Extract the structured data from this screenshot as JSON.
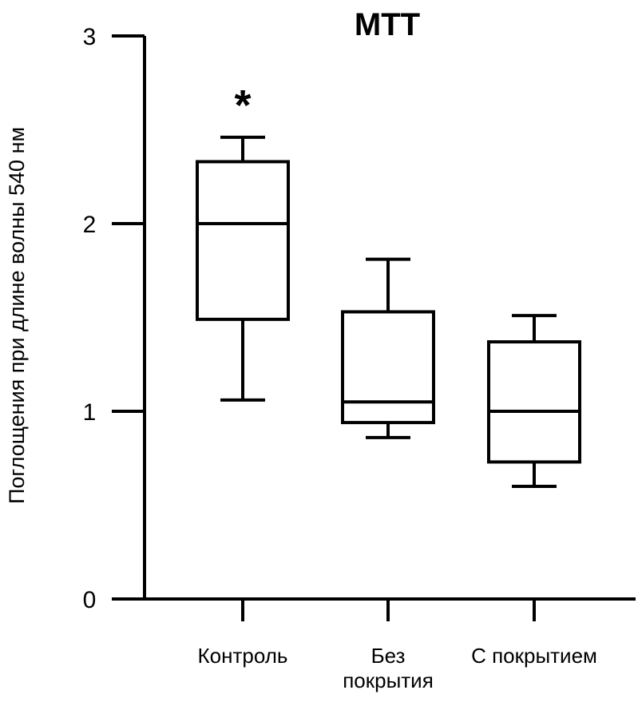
{
  "chart_data": {
    "type": "box",
    "title": "MTT",
    "xlabel": "",
    "ylabel": "Поглощения при длине волны 540 нм",
    "ylim": [
      0,
      3
    ],
    "yticks": [
      "0",
      "1",
      "2",
      "3"
    ],
    "grid": false,
    "categories": [
      {
        "label": [
          "Контроль"
        ],
        "whisker_low": 1.06,
        "q1": 1.49,
        "median": 2.0,
        "q3": 2.33,
        "whisker_high": 2.46,
        "annotation": "*"
      },
      {
        "label": [
          "Без",
          "покрытия"
        ],
        "whisker_low": 0.86,
        "q1": 0.94,
        "median": 1.05,
        "q3": 1.53,
        "whisker_high": 1.81,
        "annotation": ""
      },
      {
        "label": [
          "С покрытием"
        ],
        "whisker_low": 0.6,
        "q1": 0.73,
        "median": 1.0,
        "q3": 1.37,
        "whisker_high": 1.51,
        "annotation": ""
      }
    ]
  }
}
